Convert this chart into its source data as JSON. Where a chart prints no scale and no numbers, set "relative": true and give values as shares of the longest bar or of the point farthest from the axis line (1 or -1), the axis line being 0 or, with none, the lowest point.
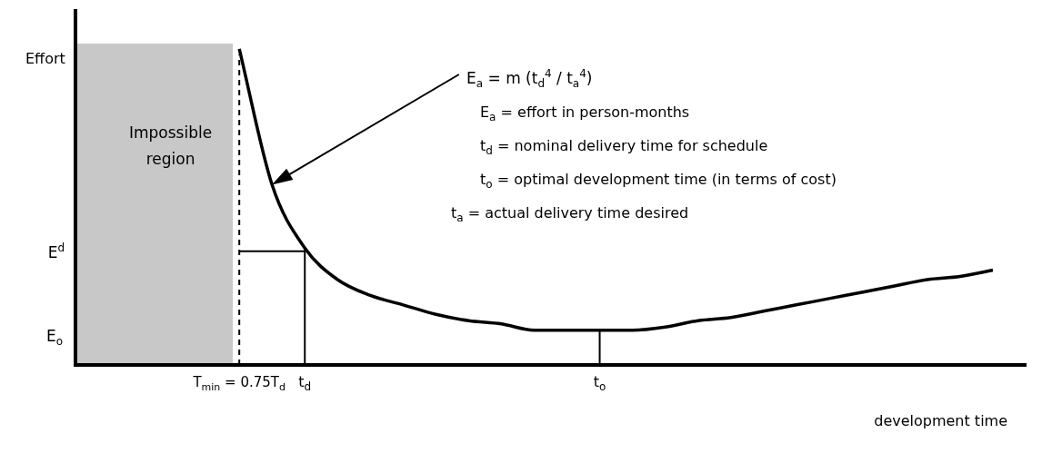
{
  "chart_data": {
    "type": "line",
    "relative": true,
    "xlabel": "development time",
    "ylabel": "Effort",
    "categories": [
      null,
      null,
      null,
      null,
      null,
      "T$_{min}$ = 0.75T$_{d}$",
      null,
      "t$_{d}$",
      null,
      null,
      null,
      null,
      null,
      null,
      null,
      null,
      "t$_{o}$",
      null,
      null,
      null,
      null,
      null,
      null,
      null,
      null,
      null,
      null,
      null,
      null,
      null
    ],
    "series": [
      {
        "color": "#000000",
        "values": [
          null,
          null,
          null,
          null,
          null,
          1.0,
          0.57,
          0.37,
          0.27,
          0.22,
          0.19,
          0.16,
          0.14,
          0.13,
          0.11,
          0.11,
          0.11,
          0.11,
          0.12,
          0.14,
          0.15,
          0.17,
          0.19,
          0.21,
          0.23,
          0.25,
          0.27,
          0.28,
          0.3,
          null
        ]
      },
      {
        "name": "E$^{d}$",
        "color": "#000000",
        "values": [
          null,
          null,
          null,
          null,
          null,
          0.36,
          0.36,
          0.36,
          null,
          null,
          null,
          null,
          null,
          null,
          null,
          null,
          null,
          null,
          null,
          null,
          null,
          null,
          null,
          null,
          null,
          null,
          null,
          null,
          null,
          null
        ]
      }
    ],
    "ref_lines": [
      {
        "axis": "x",
        "value": "T$_{min}$ = 0.75T$_{d}$",
        "line_style": "dashed",
        "color": "#000000"
      },
      {
        "axis": "x",
        "value": "t$_{d}$",
        "color": "#000000"
      },
      {
        "axis": "x",
        "value": "t$_{o}$",
        "color": "#000000"
      }
    ],
    "annotations": [
      "E$_{a}$ = m (t$_{d}$$^{4}$ / t$_{a}$$^{4}$)",
      "E$_{a}$ = effort in person-months",
      "t$_{d}$ = nominal delivery time for schedule",
      "t$_{o}$ = optimal development time (in terms of cost)",
      "t$_{a}$ = actual delivery time desired",
      "E$_{o}$",
      "Impossible region"
    ]
  }
}
